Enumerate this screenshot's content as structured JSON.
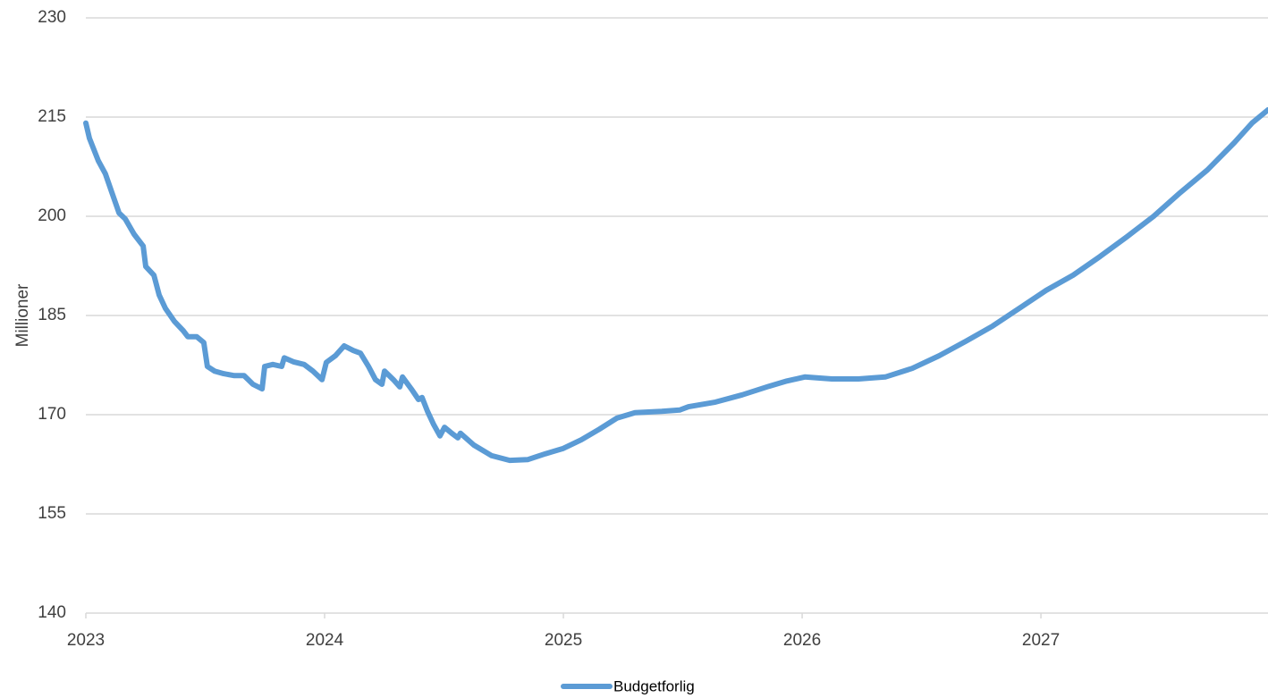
{
  "chart_data": {
    "type": "line",
    "y_label": "Millioner",
    "x": [
      2023.0,
      2023.015,
      2023.052,
      2023.082,
      2023.109,
      2023.139,
      2023.165,
      2023.202,
      2023.24,
      2023.251,
      2023.285,
      2023.307,
      2023.333,
      2023.371,
      2023.408,
      2023.427,
      2023.464,
      2023.494,
      2023.509,
      2023.539,
      2023.577,
      2023.622,
      2023.663,
      2023.7,
      2023.738,
      2023.749,
      2023.783,
      2023.82,
      2023.831,
      2023.869,
      2023.914,
      2023.951,
      2023.989,
      2024.007,
      2024.045,
      2024.082,
      2024.12,
      2024.15,
      2024.184,
      2024.213,
      2024.24,
      2024.251,
      2024.288,
      2024.315,
      2024.326,
      2024.363,
      2024.393,
      2024.408,
      2024.431,
      2024.457,
      2024.483,
      2024.502,
      2024.532,
      2024.558,
      2024.569,
      2024.625,
      2024.7,
      2024.775,
      2024.85,
      2024.925,
      2025.0,
      2025.075,
      2025.15,
      2025.225,
      2025.3,
      2025.412,
      2025.487,
      2025.524,
      2025.637,
      2025.749,
      2025.861,
      2025.936,
      2026.011,
      2026.124,
      2026.236,
      2026.348,
      2026.461,
      2026.573,
      2026.685,
      2026.798,
      2026.91,
      2027.022,
      2027.135,
      2027.247,
      2027.36,
      2027.472,
      2027.584,
      2027.697,
      2027.809,
      2027.884,
      2027.951
    ],
    "series": [
      {
        "name": "Budgetforlig",
        "color": "#5b9bd5",
        "values": [
          214.1,
          211.8,
          208.4,
          206.4,
          203.6,
          200.5,
          199.6,
          197.3,
          195.5,
          192.4,
          191.1,
          188.1,
          186.1,
          184.1,
          182.7,
          181.8,
          181.8,
          180.9,
          177.3,
          176.6,
          176.2,
          175.9,
          175.9,
          174.6,
          173.9,
          177.3,
          177.6,
          177.3,
          178.6,
          178.0,
          177.6,
          176.6,
          175.3,
          177.9,
          178.9,
          180.4,
          179.7,
          179.3,
          177.3,
          175.3,
          174.6,
          176.6,
          175.3,
          174.2,
          175.7,
          173.9,
          172.3,
          172.6,
          170.5,
          168.5,
          166.8,
          168.1,
          167.2,
          166.5,
          167.2,
          165.4,
          163.8,
          163.1,
          163.2,
          164.1,
          164.9,
          166.2,
          167.8,
          169.5,
          170.3,
          170.5,
          170.7,
          171.2,
          171.9,
          173.0,
          174.3,
          175.1,
          175.7,
          175.4,
          175.4,
          175.7,
          177.0,
          178.9,
          181.1,
          183.4,
          186.1,
          188.8,
          191.1,
          193.9,
          196.9,
          200.0,
          203.6,
          207.0,
          211.1,
          214.1,
          216.1
        ]
      }
    ],
    "xlim": [
      2023,
      2027.951
    ],
    "xticks": [
      2023,
      2024,
      2025,
      2026,
      2027
    ],
    "ylim": [
      140,
      230
    ],
    "yticks": [
      140,
      155,
      170,
      185,
      200,
      215,
      230
    ],
    "grid": true,
    "legend": "bottom"
  }
}
